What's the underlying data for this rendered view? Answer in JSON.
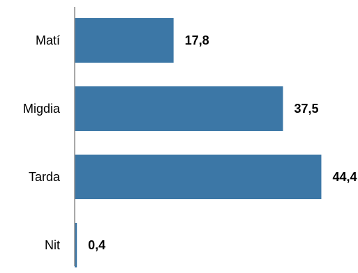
{
  "chart_data": {
    "type": "bar",
    "orientation": "horizontal",
    "categories": [
      "Matí",
      "Migdia",
      "Tarda",
      "Nit"
    ],
    "values": [
      17.8,
      37.5,
      44.4,
      0.4
    ],
    "value_labels": [
      "17,8",
      "37,5",
      "44,4",
      "0,4"
    ],
    "title": "",
    "xlabel": "",
    "ylabel": "",
    "xlim": [
      0,
      51
    ],
    "grid": false,
    "legend": "none",
    "bar_color": "#3C77A6",
    "axis_color": "#8c8c8c"
  }
}
